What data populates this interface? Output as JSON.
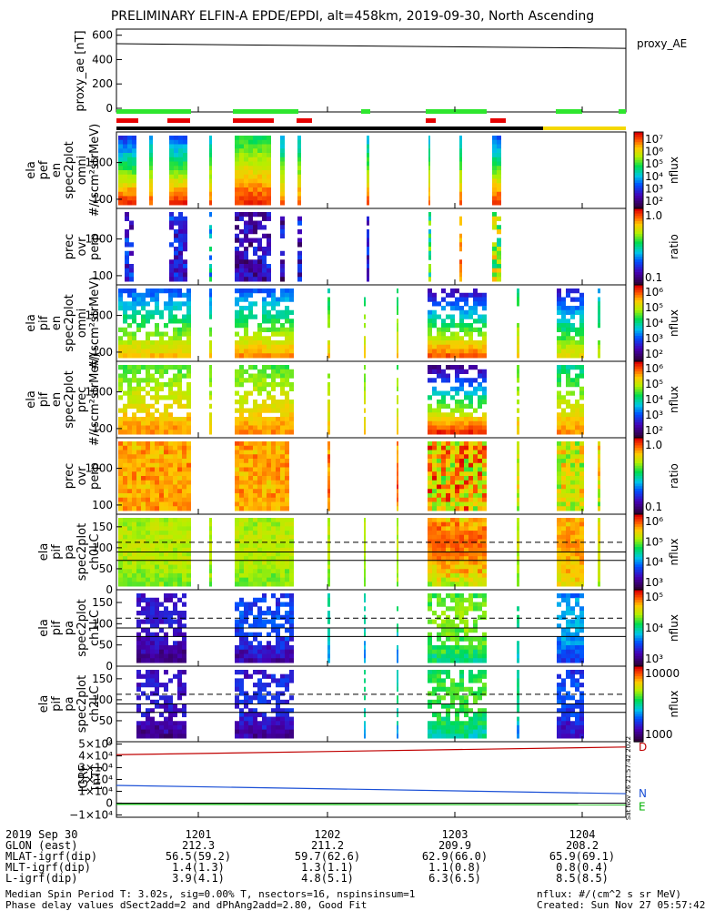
{
  "title": "PRELIMINARY ELFIN-A EPDE/EPDI, alt=458km, 2019-09-30, North Ascending",
  "stamp": "Sat Nov 26 21:57:42 2022",
  "colors": {
    "bar_green": "#2ee62e",
    "bar_red": "#e60000",
    "bar_black": "#000000",
    "bar_yellow": "#f5d800",
    "igrf_d": "#c00000",
    "igrf_n": "#1a4fd6",
    "igrf_e": "#00b000"
  },
  "chart_data": [
    {
      "type": "line",
      "panel": "proxy_ae",
      "ylabel": "proxy_ae [nT]",
      "legend": "proxy_AE",
      "ylim": [
        -30,
        650
      ],
      "yticks": [
        "600",
        "400",
        "200",
        "0"
      ],
      "x": [
        0,
        1
      ],
      "values": [
        530,
        492
      ]
    },
    {
      "type": "heatmap",
      "panel": "ela pef en spec2plot omni",
      "ylabel": "ela pef en spec2plot omni #/(scm²strMeV)",
      "yscale": "log",
      "yticks": [
        "1000",
        "100"
      ],
      "colorbar_label": "nflux",
      "colorbar_ticks": [
        "10⁷",
        "10⁶",
        "10⁵",
        "10⁴",
        "10³",
        "10²"
      ]
    },
    {
      "type": "heatmap",
      "panel": "prec ovr perp",
      "ylabel": "prec ovr perp",
      "yscale": "log",
      "yticks": [
        "1000",
        "100"
      ],
      "colorbar_label": "ratio",
      "colorbar_ticks": [
        "1.0",
        "0.1"
      ]
    },
    {
      "type": "heatmap",
      "panel": "ela pif en spec2plot omni",
      "ylabel": "ela pif en spec2plot omni #/(scm²strMeV)",
      "yscale": "log",
      "yticks": [
        "1000",
        "100"
      ],
      "colorbar_label": "nflux",
      "colorbar_ticks": [
        "10⁶",
        "10⁵",
        "10⁴",
        "10³",
        "10²"
      ]
    },
    {
      "type": "heatmap",
      "panel": "ela pif en spec2plot prec",
      "ylabel": "ela pif en spec2plot prec #/(scm²strMeV)",
      "yscale": "log",
      "yticks": [
        "1000",
        "100"
      ],
      "colorbar_label": "nflux",
      "colorbar_ticks": [
        "10⁶",
        "10⁵",
        "10⁴",
        "10³",
        "10²"
      ]
    },
    {
      "type": "heatmap",
      "panel": "prec ovr perp (pif)",
      "ylabel": "prec ovr perp",
      "yscale": "log",
      "yticks": [
        "1000",
        "100"
      ],
      "colorbar_label": "ratio",
      "colorbar_ticks": [
        "1.0",
        "0.1"
      ]
    },
    {
      "type": "heatmap",
      "panel": "ela pif pa spec2plot ch0LC",
      "ylabel": "ela pif pa spec2plot ch0LC",
      "yticks": [
        "150",
        "100",
        "50",
        "0"
      ],
      "colorbar_label": "nflux",
      "colorbar_ticks": [
        "10⁶",
        "10⁵",
        "10⁴",
        "10³"
      ]
    },
    {
      "type": "heatmap",
      "panel": "ela pif pa spec2plot ch1LC",
      "ylabel": "ela pif pa spec2plot ch1LC",
      "yticks": [
        "150",
        "100",
        "50",
        "0"
      ],
      "colorbar_label": "nflux",
      "colorbar_ticks": [
        "10⁵",
        "10⁴",
        "10³"
      ]
    },
    {
      "type": "heatmap",
      "panel": "ela pif pa spec2plot ch2LC",
      "ylabel": "ela pif pa spec2plot ch2LC",
      "yticks": [
        "150",
        "100",
        "50",
        "0"
      ],
      "colorbar_label": "nflux",
      "colorbar_ticks": [
        "10000",
        "1000"
      ]
    },
    {
      "type": "line",
      "panel": "IGRF",
      "ylabel": "IGRF [nT]",
      "yticks": [
        "5×10⁴",
        "4×10⁴",
        "3×10⁴",
        "2×10⁴",
        "1×10⁴",
        "0",
        "−1×10⁴"
      ],
      "ylim": [
        -12000,
        52000
      ],
      "x": [
        0,
        1
      ],
      "series": [
        {
          "name": "D",
          "values": [
            41000,
            47500
          ]
        },
        {
          "name": "N",
          "values": [
            15000,
            8000
          ]
        },
        {
          "name": "E",
          "values": [
            -1000,
            -1400
          ]
        }
      ]
    }
  ],
  "xaxis": {
    "rows": [
      {
        "label": "2019 Sep 30",
        "values": [
          "1201",
          "1202",
          "1203",
          "1204"
        ]
      },
      {
        "label": "GLON (east)",
        "values": [
          "212.3",
          "211.2",
          "209.9",
          "208.2"
        ]
      },
      {
        "label": "MLAT-igrf(dip)",
        "values": [
          "56.5(59.2)",
          "59.7(62.6)",
          "62.9(66.0)",
          "65.9(69.1)"
        ]
      },
      {
        "label": "MLT-igrf(dip)",
        "values": [
          "1.4(1.3)",
          "1.3(1.1)",
          "1.1(0.8)",
          "0.8(0.4)"
        ]
      },
      {
        "label": "L-igrf(dip)",
        "values": [
          "3.9(4.1)",
          "4.8(5.1)",
          "6.3(6.5)",
          "8.5(8.5)"
        ]
      }
    ]
  },
  "footer": {
    "left1": "Median Spin Period T: 3.02s, sig=0.00% T, nsectors=16, nspinsinsum=1",
    "left2": "Phase delay values dSect2add=2 and dPhAng2add=2.80, Good Fit",
    "right1": "nflux: #/(cm^2 s sr MeV)",
    "right2": "Created: Sun Nov 27 05:57:42 2022"
  }
}
